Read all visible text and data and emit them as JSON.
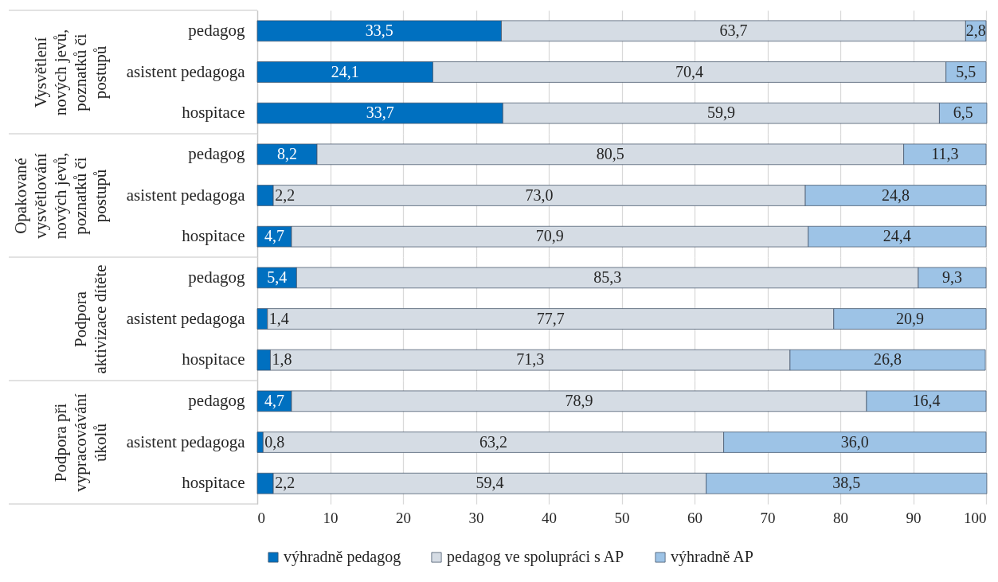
{
  "chart_data": [
    {
      "type": "bar",
      "orientation": "horizontal",
      "stacked": true,
      "ylabel": "Vysvětlení nových jevů, poznatků či postupů",
      "categories": [
        "pedagog",
        "asistent pedagoga",
        "hospitace"
      ],
      "series": [
        {
          "color": "#0070c0",
          "values": [
            33.5,
            24.1,
            33.7
          ],
          "value_labels": [
            "33,5",
            "24,1",
            "33,7"
          ]
        },
        {
          "color": "#d5dce4",
          "values": [
            63.7,
            70.4,
            59.9
          ],
          "value_labels": [
            "63,7",
            "70,4",
            "59,9"
          ]
        },
        {
          "color": "#9dc3e6",
          "values": [
            2.8,
            5.5,
            6.5
          ],
          "value_labels": [
            "2,8",
            "5,5",
            "6,5"
          ]
        }
      ],
      "xlim": [
        0,
        100
      ],
      "xticks": [
        0,
        10,
        20,
        30,
        40,
        50,
        60,
        70,
        80,
        90,
        100
      ],
      "grid": "x",
      "tick_labels": "y",
      "legend": false
    },
    {
      "type": "bar",
      "orientation": "horizontal",
      "stacked": true,
      "ylabel": "Opakované vysvětlování nových jevů, poznatků či postupů",
      "categories": [
        "pedagog",
        "asistent pedagoga",
        "hospitace"
      ],
      "series": [
        {
          "color": "#0070c0",
          "values": [
            8.2,
            2.2,
            4.7
          ],
          "value_labels": [
            "8,2",
            "2,2",
            "4,7"
          ]
        },
        {
          "color": "#d5dce4",
          "values": [
            80.5,
            73.0,
            70.9
          ],
          "value_labels": [
            "80,5",
            "73,0",
            "70,9"
          ]
        },
        {
          "color": "#9dc3e6",
          "values": [
            11.3,
            24.8,
            24.4
          ],
          "value_labels": [
            "11,3",
            "24,8",
            "24,4"
          ]
        }
      ],
      "xlim": [
        0,
        100
      ],
      "xticks": [
        0,
        10,
        20,
        30,
        40,
        50,
        60,
        70,
        80,
        90,
        100
      ],
      "grid": "x",
      "tick_labels": "y",
      "legend": false
    },
    {
      "type": "bar",
      "orientation": "horizontal",
      "stacked": true,
      "ylabel": "Podpora aktivizace dítěte",
      "categories": [
        "pedagog",
        "asistent pedagoga",
        "hospitace"
      ],
      "series": [
        {
          "color": "#0070c0",
          "values": [
            5.4,
            1.4,
            1.8
          ],
          "value_labels": [
            "5,4",
            "1,4",
            "1,8"
          ]
        },
        {
          "color": "#d5dce4",
          "values": [
            85.3,
            77.7,
            71.3
          ],
          "value_labels": [
            "85,3",
            "77,7",
            "71,3"
          ]
        },
        {
          "color": "#9dc3e6",
          "values": [
            9.3,
            20.9,
            26.8
          ],
          "value_labels": [
            "9,3",
            "20,9",
            "26,8"
          ]
        }
      ],
      "xlim": [
        0,
        100
      ],
      "xticks": [
        0,
        10,
        20,
        30,
        40,
        50,
        60,
        70,
        80,
        90,
        100
      ],
      "grid": "x",
      "tick_labels": "y",
      "legend": false
    },
    {
      "type": "bar",
      "orientation": "horizontal",
      "stacked": true,
      "ylabel": "Podpora při vypracovávání úkolů",
      "categories": [
        "pedagog",
        "asistent pedagoga",
        "hospitace"
      ],
      "series": [
        {
          "name": "výhradně pedagog",
          "color": "#0070c0",
          "values": [
            4.7,
            0.8,
            2.2
          ],
          "value_labels": [
            "4,7",
            "0,8",
            "2,2"
          ]
        },
        {
          "name": "pedagog ve spolupráci s AP",
          "color": "#d5dce4",
          "values": [
            78.9,
            63.2,
            59.4
          ],
          "value_labels": [
            "78,9",
            "63,2",
            "59,4"
          ]
        },
        {
          "name": "výhradně AP",
          "color": "#9dc3e6",
          "values": [
            16.4,
            36.0,
            38.5
          ],
          "value_labels": [
            "16,4",
            "36,0",
            "38,5"
          ]
        }
      ],
      "xlim": [
        0,
        100
      ],
      "xticks": [
        0,
        10,
        20,
        30,
        40,
        50,
        60,
        70,
        80,
        90,
        100
      ],
      "grid": "x",
      "legend": "bottom"
    }
  ]
}
